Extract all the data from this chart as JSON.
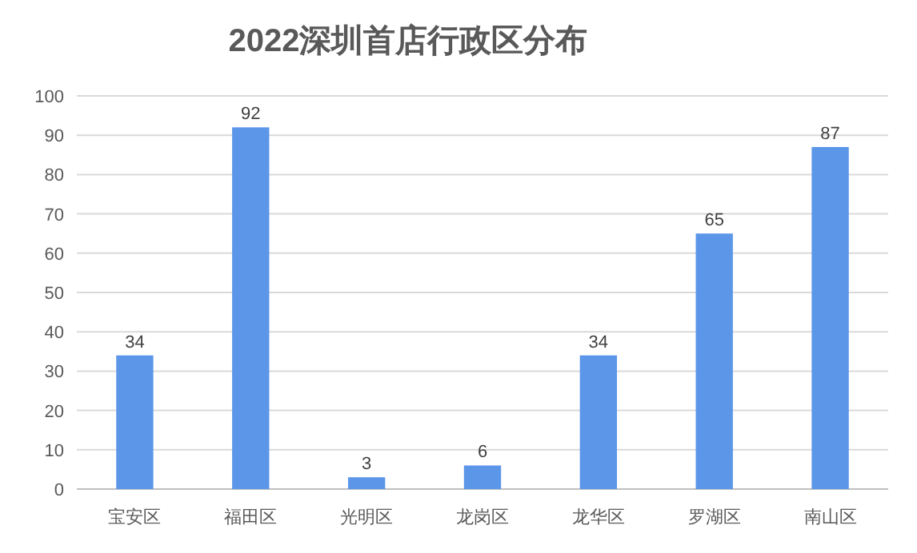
{
  "chart_data": {
    "type": "bar",
    "title": "2022深圳首店行政区分布",
    "categories": [
      "宝安区",
      "福田区",
      "光明区",
      "龙岗区",
      "龙华区",
      "罗湖区",
      "南山区"
    ],
    "values": [
      34,
      92,
      3,
      6,
      34,
      65,
      87
    ],
    "color": "#5b96e8",
    "ylim": [
      0,
      100
    ],
    "yticks": [
      0,
      10,
      20,
      30,
      40,
      50,
      60,
      70,
      80,
      90,
      100
    ],
    "grid": "y",
    "data_labels": true
  }
}
